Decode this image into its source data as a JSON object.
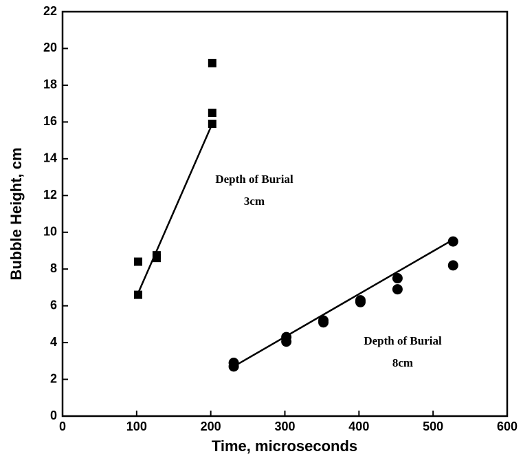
{
  "chart_data": {
    "type": "scatter",
    "xlabel": "Time, microseconds",
    "ylabel": "Bubble Height, cm",
    "xlim": [
      0,
      600
    ],
    "xticks": [
      0,
      100,
      200,
      300,
      400,
      500,
      600
    ],
    "ylim": [
      0,
      22
    ],
    "yticks": [
      0,
      2,
      4,
      6,
      8,
      10,
      12,
      14,
      16,
      18,
      20,
      22
    ],
    "series": [
      {
        "marker": "square",
        "color": "#000000",
        "x": [
          102,
          102,
          127,
          127,
          202,
          202,
          202
        ],
        "values": [
          8.4,
          6.6,
          8.75,
          8.6,
          19.2,
          16.5,
          15.9
        ],
        "fit_x": [
          101,
          202
        ],
        "fit_values": [
          6.6,
          15.9
        ]
      },
      {
        "marker": "circle",
        "color": "#000000",
        "x": [
          231,
          231,
          302,
          302,
          352,
          352,
          402,
          402,
          452,
          452,
          527,
          527
        ],
        "values": [
          2.9,
          2.7,
          4.3,
          4.05,
          5.2,
          5.1,
          6.3,
          6.2,
          7.5,
          6.9,
          9.5,
          8.2
        ],
        "fit_x": [
          231,
          527
        ],
        "fit_values": [
          2.7,
          9.6
        ]
      }
    ],
    "annotations": [
      [
        "Depth of Burial",
        "3cm"
      ],
      [
        "Depth of Burial",
        "8cm"
      ]
    ]
  }
}
